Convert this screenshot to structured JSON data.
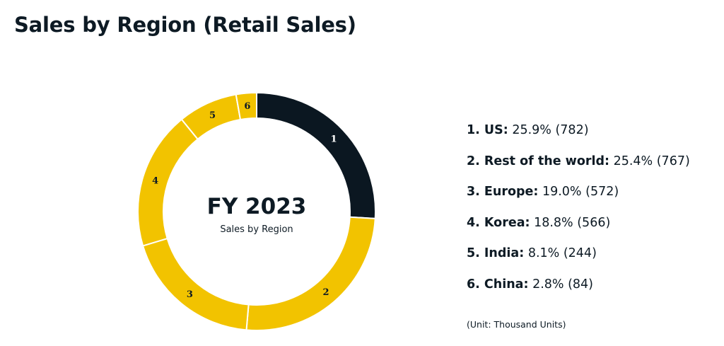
{
  "page": {
    "title": "Sales by Region (Retail Sales)"
  },
  "center": {
    "title": "FY 2023",
    "subtitle": "Sales by Region"
  },
  "legend": [
    {
      "label": "1. US:",
      "value": "25.9% (782)"
    },
    {
      "label": "2. Rest of the world:",
      "value": "25.4% (767)"
    },
    {
      "label": "3. Europe:",
      "value": "19.0% (572)"
    },
    {
      "label": "4. Korea:",
      "value": "18.8% (566)"
    },
    {
      "label": "5. India:",
      "value": "8.1% (244)"
    },
    {
      "label": "6. China:",
      "value": "2.8% (84)"
    }
  ],
  "unit_note": "(Unit: Thousand Units)",
  "colors": {
    "dark": "#0b1721",
    "yellow": "#f2c300",
    "separator": "#ffffff"
  },
  "chart_data": {
    "type": "pie",
    "title": "Sales by Region (Retail Sales)",
    "unit": "Thousand Units",
    "categories": [
      "US",
      "Rest of the world",
      "Europe",
      "Korea",
      "India",
      "China"
    ],
    "slice_labels": [
      "1",
      "2",
      "3",
      "4",
      "5",
      "6"
    ],
    "values": [
      782,
      767,
      572,
      566,
      244,
      84
    ],
    "percentages": [
      25.9,
      25.4,
      19.0,
      18.8,
      8.1,
      2.8
    ],
    "slice_colors": [
      "#0b1721",
      "#f2c300",
      "#f2c300",
      "#f2c300",
      "#f2c300",
      "#f2c300"
    ],
    "label_colors": [
      "#ffffff",
      "#0d1a24",
      "#0d1a24",
      "#0d1a24",
      "#0d1a24",
      "#0d1a24"
    ],
    "donut": true,
    "start": "top",
    "direction": "clockwise"
  }
}
